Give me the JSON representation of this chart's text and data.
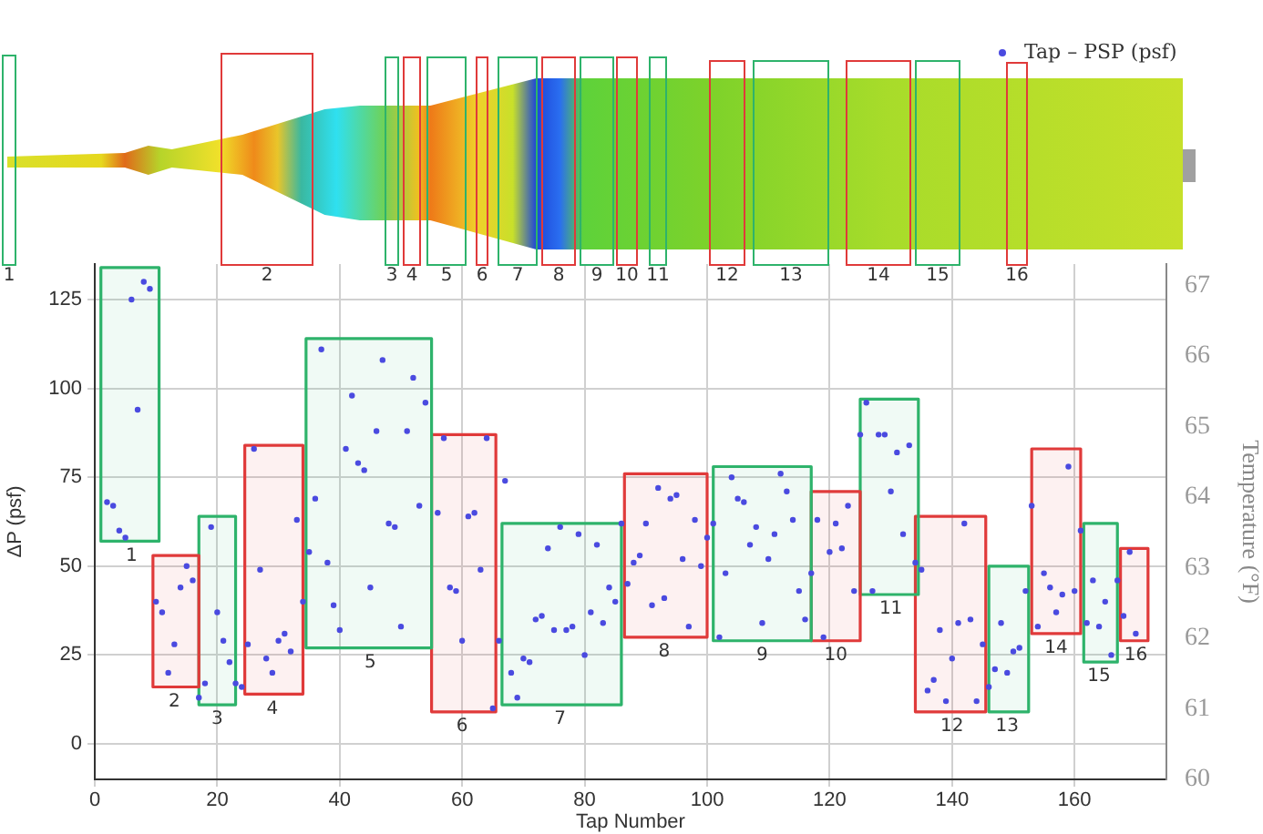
{
  "chart_data": {
    "type": "scatter",
    "xlabel": "Tap Number",
    "ylabel": "ΔP (psf)",
    "y2label": "Temperature (°F)",
    "xlim": [
      0,
      175
    ],
    "xticks": [
      0,
      20,
      40,
      60,
      80,
      100,
      120,
      140,
      160
    ],
    "ylim": [
      -10,
      135
    ],
    "yticks": [
      0,
      25,
      50,
      75,
      100,
      125
    ],
    "y2lim": [
      60,
      67.3
    ],
    "y2ticks": [
      60,
      61,
      62,
      63,
      64,
      65,
      66,
      67
    ],
    "grid": true,
    "legend": "top right",
    "series": [
      {
        "name": "Tap – PSP (psf)",
        "marker": "circle",
        "color": "#4a4ae0",
        "x": [
          2,
          3,
          4,
          5,
          6,
          7,
          8,
          9,
          10,
          11,
          12,
          13,
          14,
          15,
          16,
          17,
          18,
          19,
          20,
          21,
          22,
          23,
          24,
          25,
          26,
          27,
          28,
          29,
          30,
          31,
          32,
          33,
          34,
          35,
          36,
          37,
          38,
          39,
          40,
          41,
          42,
          43,
          44,
          45,
          46,
          47,
          48,
          49,
          50,
          51,
          52,
          53,
          54,
          56,
          57,
          58,
          59,
          60,
          61,
          62,
          63,
          64,
          65,
          66,
          67,
          68,
          69,
          70,
          71,
          72,
          73,
          74,
          75,
          76,
          77,
          78,
          79,
          80,
          81,
          82,
          83,
          84,
          85,
          86,
          87,
          88,
          89,
          90,
          91,
          92,
          93,
          94,
          95,
          96,
          97,
          98,
          99,
          100,
          101,
          102,
          103,
          104,
          105,
          106,
          107,
          108,
          109,
          110,
          111,
          112,
          113,
          114,
          115,
          116,
          117,
          118,
          119,
          120,
          121,
          122,
          123,
          124,
          125,
          126,
          127,
          128,
          129,
          130,
          131,
          132,
          133,
          134,
          135,
          136,
          137,
          138,
          139,
          140,
          141,
          142,
          143,
          144,
          145,
          146,
          147,
          148,
          149,
          150,
          151,
          152,
          153,
          154,
          155,
          156,
          157,
          158,
          159,
          160,
          161,
          162,
          163,
          164,
          165,
          166,
          167,
          168,
          169,
          170
        ],
        "values": [
          68,
          67,
          60,
          58,
          125,
          94,
          130,
          128,
          40,
          37,
          20,
          28,
          44,
          50,
          46,
          13,
          17,
          61,
          37,
          29,
          23,
          17,
          16,
          28,
          83,
          49,
          24,
          20,
          29,
          31,
          26,
          63,
          40,
          54,
          69,
          111,
          51,
          39,
          32,
          83,
          98,
          79,
          77,
          44,
          88,
          108,
          62,
          61,
          33,
          88,
          103,
          67,
          96,
          65,
          86,
          44,
          43,
          29,
          64,
          65,
          49,
          86,
          10,
          29,
          74,
          20,
          13,
          24,
          23,
          35,
          36,
          55,
          32,
          61,
          32,
          33,
          59,
          25,
          37,
          56,
          34,
          44,
          40,
          62,
          45,
          51,
          53,
          62,
          39,
          72,
          41,
          69,
          70,
          52,
          33,
          63,
          50,
          58,
          62,
          30,
          48,
          75,
          69,
          68,
          56,
          61,
          34,
          52,
          59,
          76,
          71,
          63,
          43,
          35,
          48,
          63,
          30,
          54,
          62,
          55,
          67,
          43,
          87,
          96,
          43,
          87,
          87,
          71,
          82,
          59,
          84,
          51,
          49,
          15,
          18,
          32,
          12,
          24,
          34,
          62,
          35,
          12,
          28,
          16,
          21,
          34,
          20,
          26,
          27,
          43,
          67,
          33,
          48,
          44,
          37,
          42,
          78,
          43,
          60,
          34,
          46,
          33,
          40,
          25,
          46,
          36,
          54,
          31
        ]
      },
      {
        "type": "area",
        "color": "#2eb36b",
        "x": [
          1,
          10.5,
          10.5,
          1,
          1
        ],
        "values": [
          57,
          57,
          134,
          134,
          57
        ]
      },
      {
        "type": "area",
        "color": "#e03a3a",
        "x": [
          9.5,
          17,
          17,
          9.5,
          9.5
        ],
        "values": [
          16,
          16,
          53,
          53,
          16
        ]
      },
      {
        "type": "area",
        "color": "#2eb36b",
        "x": [
          17,
          23,
          23,
          17,
          17
        ],
        "values": [
          11,
          11,
          64,
          64,
          11
        ]
      },
      {
        "type": "area",
        "color": "#e03a3a",
        "x": [
          24.5,
          34,
          34,
          24.5,
          24.5
        ],
        "values": [
          14,
          14,
          84,
          84,
          14
        ]
      },
      {
        "type": "area",
        "color": "#2eb36b",
        "x": [
          34.5,
          55,
          55,
          34.5,
          34.5
        ],
        "values": [
          27,
          27,
          114,
          114,
          27
        ]
      },
      {
        "type": "area",
        "color": "#e03a3a",
        "x": [
          55,
          65.5,
          65.5,
          55,
          55
        ],
        "values": [
          9,
          9,
          87,
          87,
          9
        ]
      },
      {
        "type": "area",
        "color": "#2eb36b",
        "x": [
          66.5,
          86,
          86,
          66.5,
          66.5
        ],
        "values": [
          11,
          11,
          62,
          62,
          11
        ]
      },
      {
        "type": "area",
        "color": "#e03a3a",
        "x": [
          86.5,
          100,
          100,
          86.5,
          86.5
        ],
        "values": [
          30,
          30,
          76,
          76,
          30
        ]
      },
      {
        "type": "area",
        "color": "#2eb36b",
        "x": [
          101,
          117,
          117,
          101,
          101
        ],
        "values": [
          29,
          29,
          78,
          78,
          29
        ]
      },
      {
        "type": "area",
        "color": "#e03a3a",
        "x": [
          117,
          125,
          125,
          117,
          117
        ],
        "values": [
          29,
          29,
          71,
          71,
          29
        ]
      },
      {
        "type": "area",
        "color": "#2eb36b",
        "x": [
          125,
          134.5,
          134.5,
          125,
          125
        ],
        "values": [
          42,
          42,
          97,
          97,
          42
        ]
      },
      {
        "type": "area",
        "color": "#e03a3a",
        "x": [
          134,
          145.5,
          145.5,
          134,
          134
        ],
        "values": [
          9,
          9,
          64,
          64,
          9
        ]
      },
      {
        "type": "area",
        "color": "#2eb36b",
        "x": [
          146,
          152.5,
          152.5,
          146,
          146
        ],
        "values": [
          9,
          9,
          50,
          50,
          9
        ]
      },
      {
        "type": "area",
        "color": "#e03a3a",
        "x": [
          153,
          161,
          161,
          153,
          153
        ],
        "values": [
          31,
          31,
          83,
          83,
          31
        ]
      },
      {
        "type": "area",
        "color": "#2eb36b",
        "x": [
          161.5,
          167,
          167,
          161.5,
          161.5
        ],
        "values": [
          23,
          23,
          62,
          62,
          23
        ]
      },
      {
        "type": "area",
        "color": "#e03a3a",
        "x": [
          167.5,
          172,
          172,
          167.5,
          167.5
        ],
        "values": [
          29,
          29,
          55,
          55,
          29
        ]
      }
    ],
    "annotations": [
      {
        "text": "1",
        "x": 6,
        "y": 57
      },
      {
        "text": "2",
        "x": 13,
        "y": 16
      },
      {
        "text": "3",
        "x": 20,
        "y": 11
      },
      {
        "text": "4",
        "x": 29,
        "y": 14
      },
      {
        "text": "5",
        "x": 45,
        "y": 27
      },
      {
        "text": "6",
        "x": 60,
        "y": 9
      },
      {
        "text": "7",
        "x": 76,
        "y": 11
      },
      {
        "text": "8",
        "x": 93,
        "y": 30
      },
      {
        "text": "9",
        "x": 109,
        "y": 29
      },
      {
        "text": "10",
        "x": 121,
        "y": 29
      },
      {
        "text": "11",
        "x": 130,
        "y": 42
      },
      {
        "text": "12",
        "x": 140,
        "y": 9
      },
      {
        "text": "13",
        "x": 149,
        "y": 9
      },
      {
        "text": "14",
        "x": 157,
        "y": 31
      },
      {
        "text": "15",
        "x": 164,
        "y": 23
      },
      {
        "text": "16",
        "x": 170,
        "y": 29
      }
    ]
  }
}
